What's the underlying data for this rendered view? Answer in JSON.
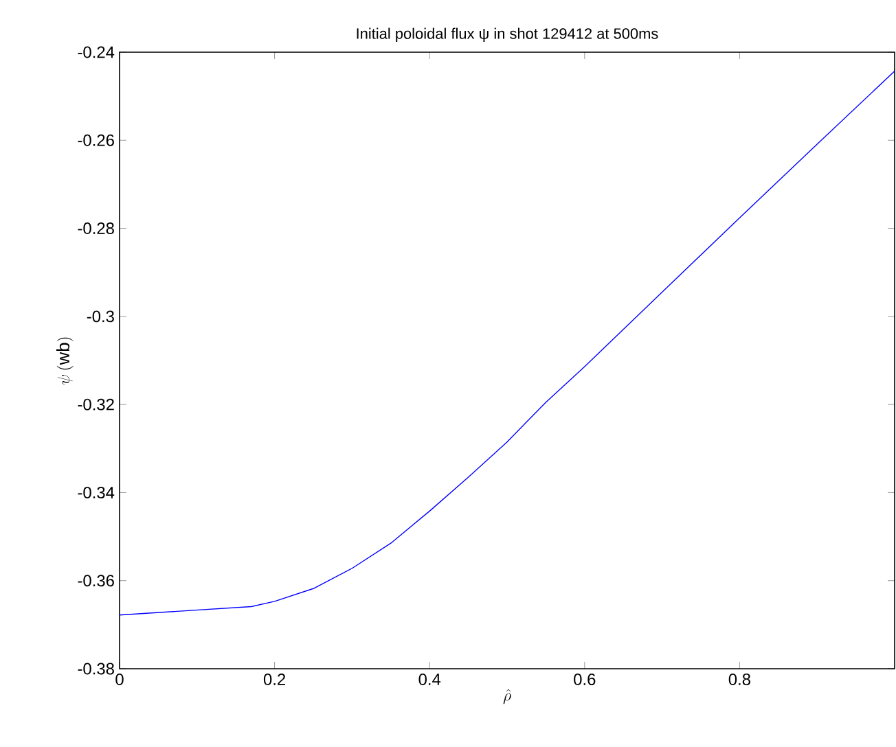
{
  "chart_data": {
    "type": "line",
    "title": "Initial  poloidal flux ψ in shot 129412 at 500ms",
    "xlabel": "\\hat{\\rho}",
    "ylabel": "\\psi\\,(\\mathrm{wb})",
    "x": [
      0,
      0.17,
      0.2,
      0.25,
      0.3,
      0.35,
      0.4,
      0.45,
      0.5,
      0.55,
      0.6,
      0.7,
      0.8,
      0.9,
      1.0
    ],
    "series": [
      {
        "color": "#0000ff",
        "values": [
          -0.3678,
          -0.3659,
          -0.3647,
          -0.3618,
          -0.3572,
          -0.3515,
          -0.3442,
          -0.3365,
          -0.3285,
          -0.3195,
          -0.3114,
          -0.2945,
          -0.2776,
          -0.2609,
          -0.2443
        ]
      }
    ],
    "xlim": [
      0,
      1
    ],
    "ylim": [
      -0.38,
      -0.24
    ],
    "xticks": [
      0,
      0.2,
      0.4,
      0.6,
      0.8
    ],
    "yticks": [
      -0.38,
      -0.36,
      -0.34,
      -0.32,
      -0.3,
      -0.28,
      -0.26,
      -0.24
    ],
    "grid": false,
    "marker": "none",
    "line_style": "solid"
  }
}
